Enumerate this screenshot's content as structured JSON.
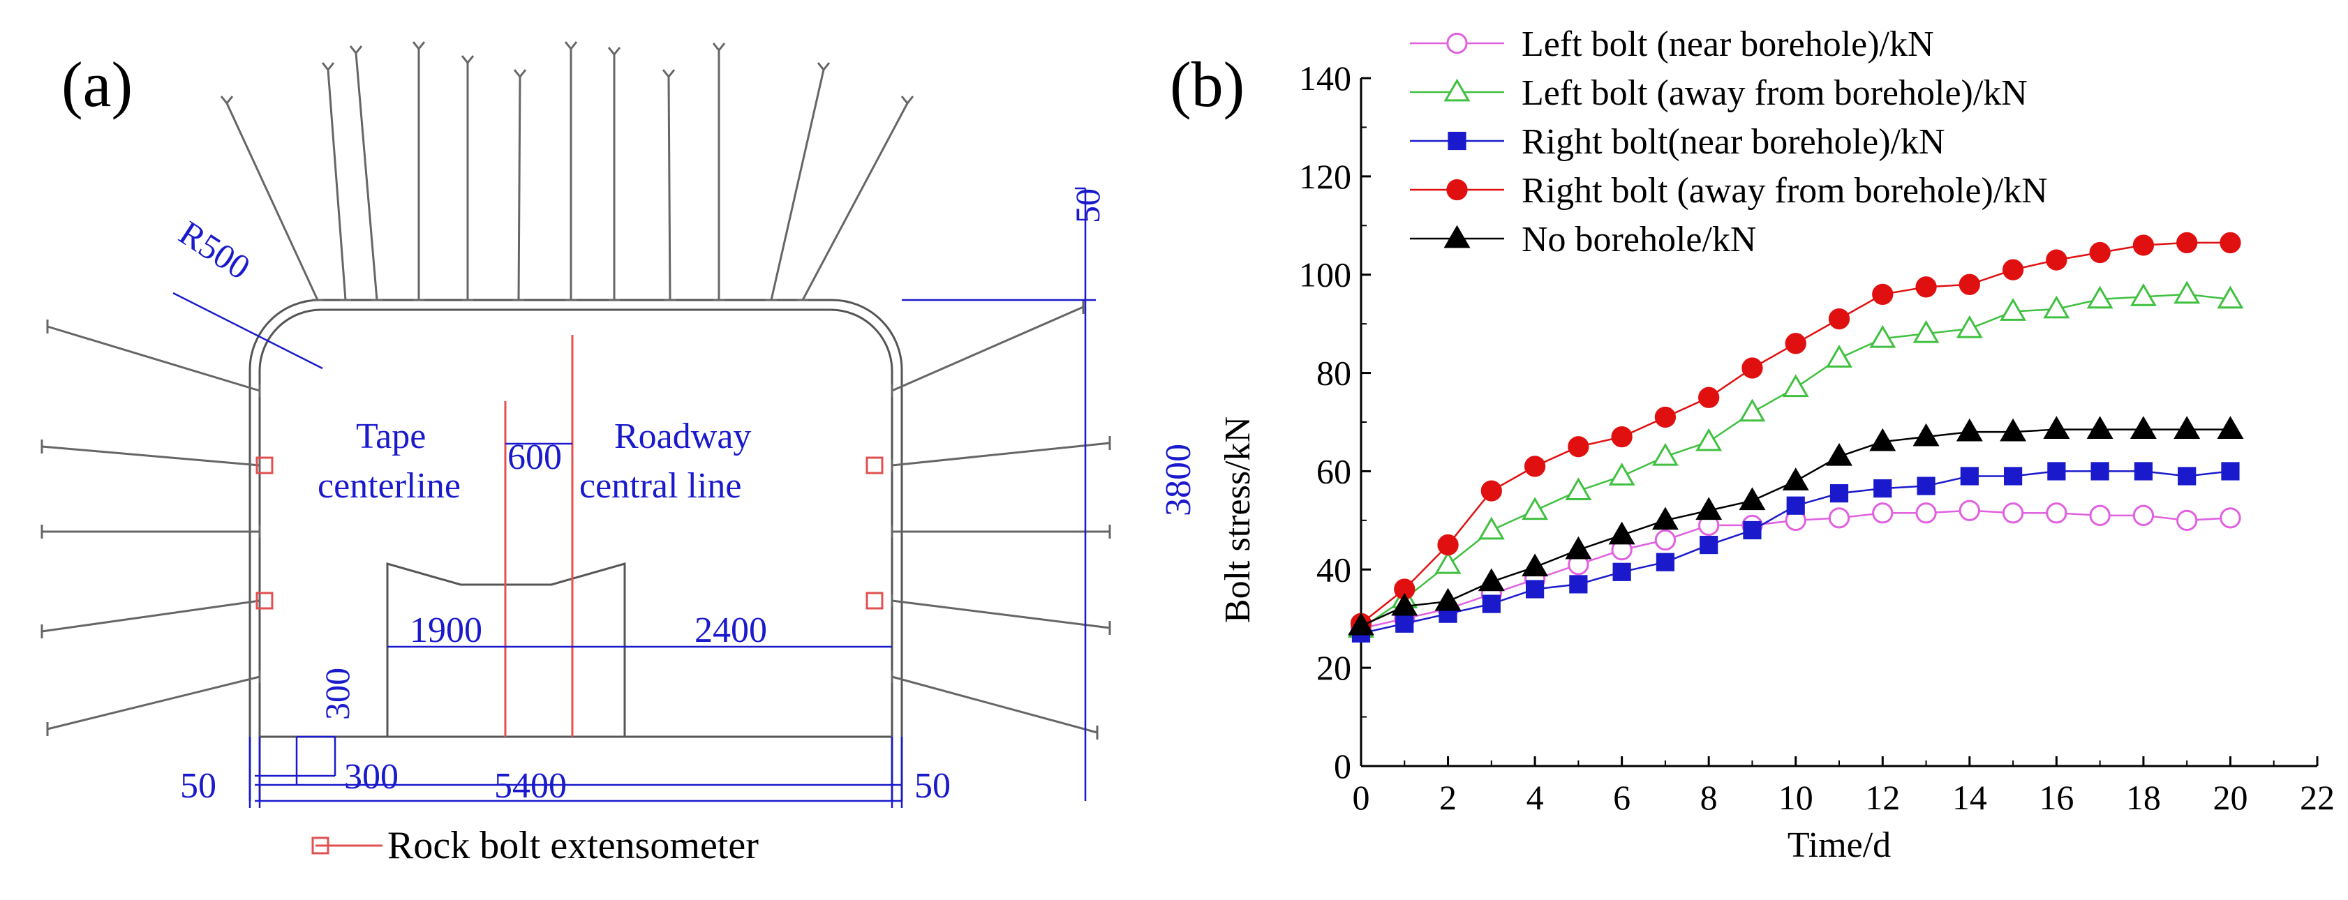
{
  "panel_a": {
    "label": "(a)",
    "dims": {
      "r500": "R500",
      "top50": "50",
      "h3800": "3800",
      "c600": "600",
      "w1900": "1900",
      "w2400": "2400",
      "h300": "300",
      "w300": "300",
      "w5400": "5400",
      "left50": "50",
      "right50": "50"
    },
    "tape_line1": "Tape",
    "tape_line2": "centerline",
    "road_line1": "Roadway",
    "road_line2": "central line",
    "legend": "Rock bolt extensometer",
    "colors": {
      "dim": "#1a1acc",
      "marker": "#e05050",
      "line": "#555555"
    }
  },
  "panel_b": {
    "label": "(b)"
  },
  "chart_data": {
    "type": "line",
    "title": "",
    "xlabel": "Time/d",
    "ylabel": "Bolt stress/kN",
    "xlim": [
      0,
      22
    ],
    "ylim": [
      0,
      140
    ],
    "xticks": [
      0,
      2,
      4,
      6,
      8,
      10,
      12,
      14,
      16,
      18,
      20,
      22
    ],
    "yticks": [
      0,
      20,
      40,
      60,
      80,
      100,
      120,
      140
    ],
    "grid": false,
    "legend_position": "top",
    "x": [
      0,
      1,
      2,
      3,
      4,
      5,
      6,
      7,
      8,
      9,
      10,
      11,
      12,
      13,
      14,
      15,
      16,
      17,
      18,
      19,
      20
    ],
    "series": [
      {
        "name": "Left bolt (near borehole)/kN",
        "color": "#e060e0",
        "marker": "circle-open",
        "values": [
          28,
          30,
          32,
          35,
          38,
          41,
          44,
          46,
          49,
          49,
          50,
          50.5,
          51.5,
          51.5,
          52,
          51.5,
          51.5,
          51,
          51,
          50,
          50.5
        ]
      },
      {
        "name": "Left bolt (away from borehole)/kN",
        "color": "#40c040",
        "marker": "triangle-open",
        "values": [
          28,
          34,
          41,
          48,
          52,
          56,
          59,
          63,
          66,
          72,
          77,
          83,
          87,
          88,
          89,
          92.5,
          93,
          95,
          95.5,
          96,
          95
        ]
      },
      {
        "name": "Right bolt(near borehole)/kN",
        "color": "#1a1acc",
        "marker": "square",
        "values": [
          27,
          29,
          31,
          33,
          36,
          37,
          39.5,
          41.5,
          45,
          48,
          53,
          55.5,
          56.5,
          57,
          59,
          59,
          60,
          60,
          60,
          59,
          60
        ]
      },
      {
        "name": "Right bolt (away from borehole)/kN",
        "color": "#e01010",
        "marker": "circle",
        "values": [
          29,
          36,
          45,
          56,
          61,
          65,
          67,
          71,
          75,
          81,
          86,
          91,
          96,
          97.5,
          98,
          101,
          103,
          104.5,
          106,
          106.5,
          106.5
        ]
      },
      {
        "name": "No borehole/kN",
        "color": "#000000",
        "marker": "triangle",
        "values": [
          28.5,
          32.5,
          33.5,
          37.5,
          40.5,
          44,
          47,
          50,
          52,
          54,
          58,
          63,
          66,
          67,
          68,
          68,
          68.5,
          68.5,
          68.5,
          68.5,
          68.5
        ]
      }
    ]
  }
}
